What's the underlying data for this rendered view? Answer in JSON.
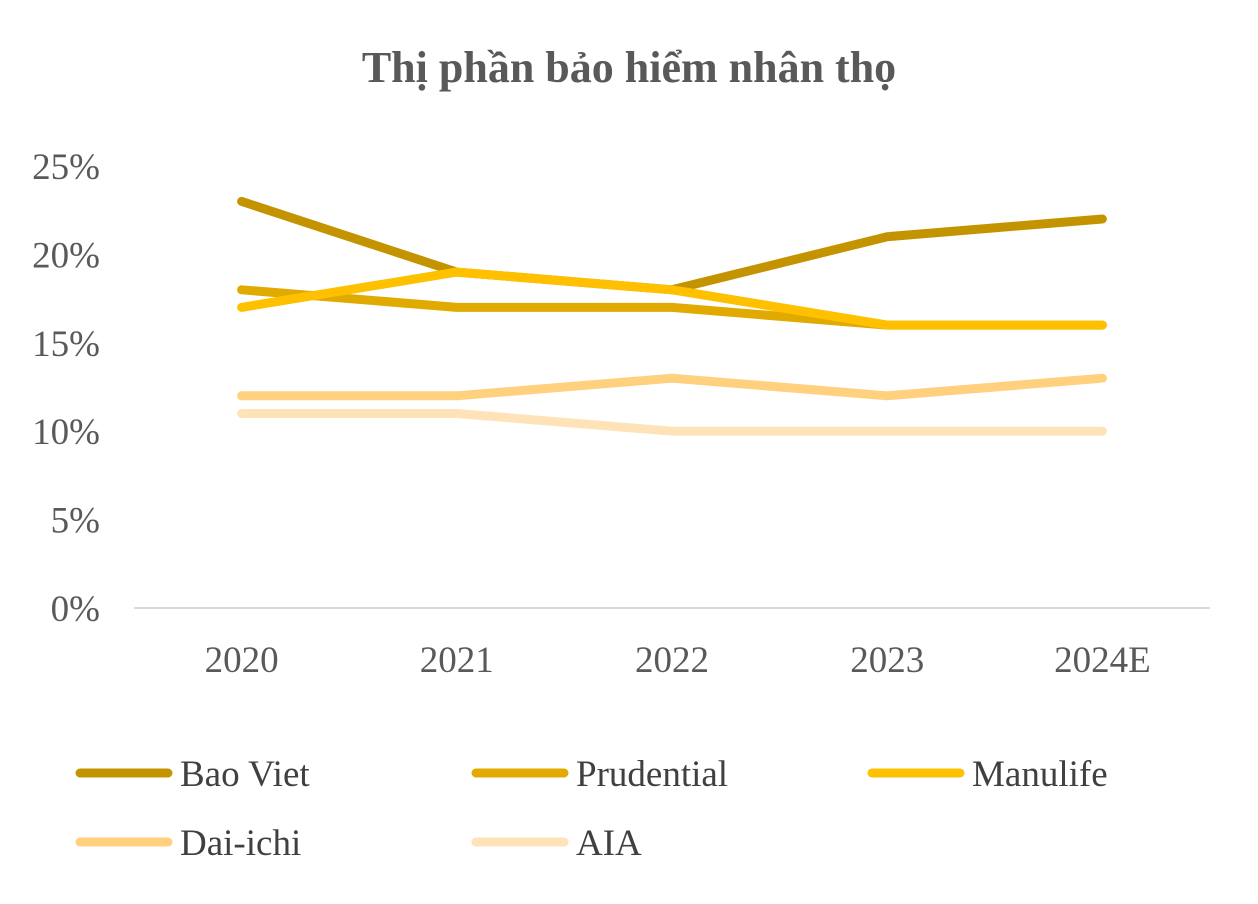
{
  "chart_data": {
    "type": "line",
    "title": "Thị phần bảo hiểm nhân thọ",
    "xlabel": "",
    "ylabel": "",
    "categories": [
      "2020",
      "2021",
      "2022",
      "2023",
      "2024E"
    ],
    "ylim": [
      0,
      25
    ],
    "y_ticks": [
      "0%",
      "5%",
      "10%",
      "15%",
      "20%",
      "25%"
    ],
    "grid": false,
    "legend_position": "bottom",
    "series": [
      {
        "name": "Bao Viet",
        "color": "#C49400",
        "values": [
          23,
          19,
          18,
          21,
          22
        ]
      },
      {
        "name": "Prudential",
        "color": "#E0AA00",
        "values": [
          18,
          17,
          17,
          16,
          16
        ]
      },
      {
        "name": "Manulife",
        "color": "#FFC000",
        "values": [
          17,
          19,
          18,
          16,
          16
        ]
      },
      {
        "name": "Dai-ichi",
        "color": "#FFD17F",
        "values": [
          12,
          12,
          13,
          12,
          13
        ]
      },
      {
        "name": "AIA",
        "color": "#FFE3B8",
        "values": [
          11,
          11,
          10,
          10,
          10
        ]
      }
    ]
  }
}
